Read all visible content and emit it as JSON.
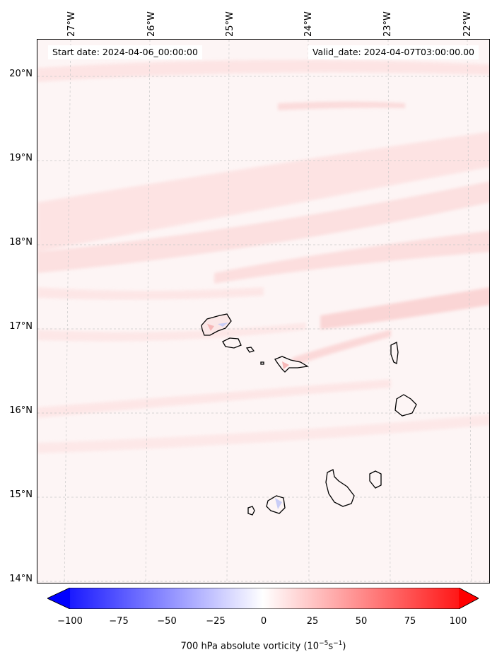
{
  "map": {
    "start_label": "Start date: 2024-04-06_00:00:00",
    "valid_label": "Valid_date: 2024-04-07T03:00:00.00",
    "lat_labels": [
      "20°N",
      "19°N",
      "18°N",
      "17°N",
      "16°N",
      "15°N",
      "14°N"
    ],
    "lon_labels": [
      "27°W",
      "26°W",
      "25°W",
      "24°W",
      "23°W",
      "22°W"
    ],
    "region": "Cape Verde islands",
    "extent": {
      "lon_min": -27.35,
      "lon_max": -21.8,
      "lat_min": 13.95,
      "lat_max": 20.4
    }
  },
  "colorbar": {
    "ticks": [
      "−100",
      "−75",
      "−50",
      "−25",
      "0",
      "25",
      "50",
      "75",
      "100"
    ],
    "label_text": "700 hPa absolute vorticity (10",
    "label_exp1": "−5",
    "label_mid": "s",
    "label_exp2": "−1",
    "label_end": ")",
    "range": [
      -100,
      100
    ],
    "colors": {
      "min": "#0000ff",
      "mid": "#ffffff",
      "max": "#ff0000"
    }
  }
}
